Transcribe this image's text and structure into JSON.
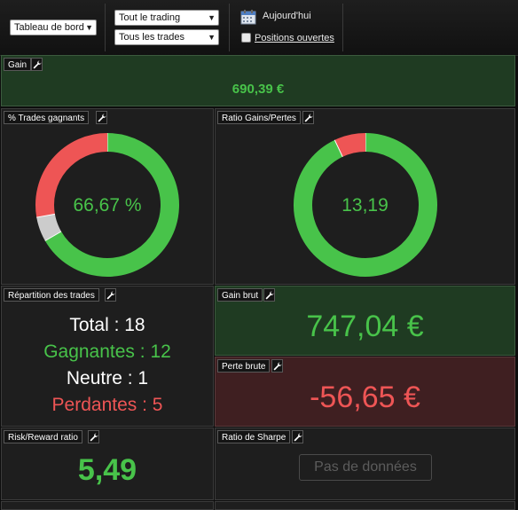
{
  "toolbar": {
    "view_select": "Tableau de bord",
    "scope_select": "Tout le trading",
    "trades_select": "Tous les trades",
    "date_label": "Aujourd'hui",
    "open_positions_label": "Positions ouvertes",
    "open_positions_checked": false
  },
  "gain": {
    "title": "Gain",
    "value": "690,39 €"
  },
  "winning_pct": {
    "title": "% Trades gagnants",
    "value": "66,67 %",
    "chart_data": {
      "type": "pie",
      "categories": [
        "Gagnantes",
        "Neutre",
        "Perdantes"
      ],
      "values": [
        12,
        1,
        5
      ],
      "colors": [
        "#48c34a",
        "#cccccc",
        "#ee5555"
      ]
    }
  },
  "gain_loss_ratio": {
    "title": "Ratio Gains/Pertes",
    "value": "13,19",
    "chart_data": {
      "type": "pie",
      "categories": [
        "Gain brut",
        "Perte brute"
      ],
      "values": [
        747.04,
        56.65
      ],
      "colors": [
        "#48c34a",
        "#ee5555"
      ]
    }
  },
  "distribution": {
    "title": "Répartition des trades",
    "total_label": "Total",
    "total": "18",
    "winners_label": "Gagnantes",
    "winners": "12",
    "neutral_label": "Neutre",
    "neutral": "1",
    "losers_label": "Perdantes",
    "losers": "5"
  },
  "gross_gain": {
    "title": "Gain brut",
    "value": "747,04 €"
  },
  "gross_loss": {
    "title": "Perte brute",
    "value": "-56,65 €"
  },
  "risk_reward": {
    "title": "Risk/Reward ratio",
    "value": "5,49"
  },
  "sharpe": {
    "title": "Ratio de Sharpe",
    "no_data": "Pas de données"
  },
  "colors": {
    "positive": "#48c34a",
    "negative": "#ee5555",
    "neutral": "#cccccc"
  }
}
